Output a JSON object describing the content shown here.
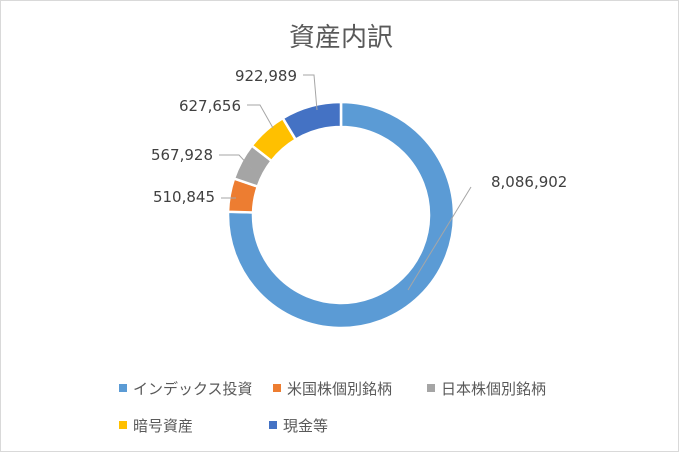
{
  "chart_data": {
    "type": "pie",
    "variant": "doughnut",
    "title": "資産内訳",
    "categories": [
      "インデックス投資",
      "米国株個別銘柄",
      "日本株個別銘柄",
      "暗号資産",
      "現金等"
    ],
    "values": [
      8086902,
      510845,
      567928,
      627656,
      922989
    ],
    "value_labels": [
      "8,086,902",
      "510,845",
      "567,928",
      "627,656",
      "922,989"
    ],
    "colors": [
      "#5b9bd5",
      "#ed7d31",
      "#a5a5a5",
      "#ffc000",
      "#4472c4"
    ],
    "legend_position": "bottom"
  }
}
